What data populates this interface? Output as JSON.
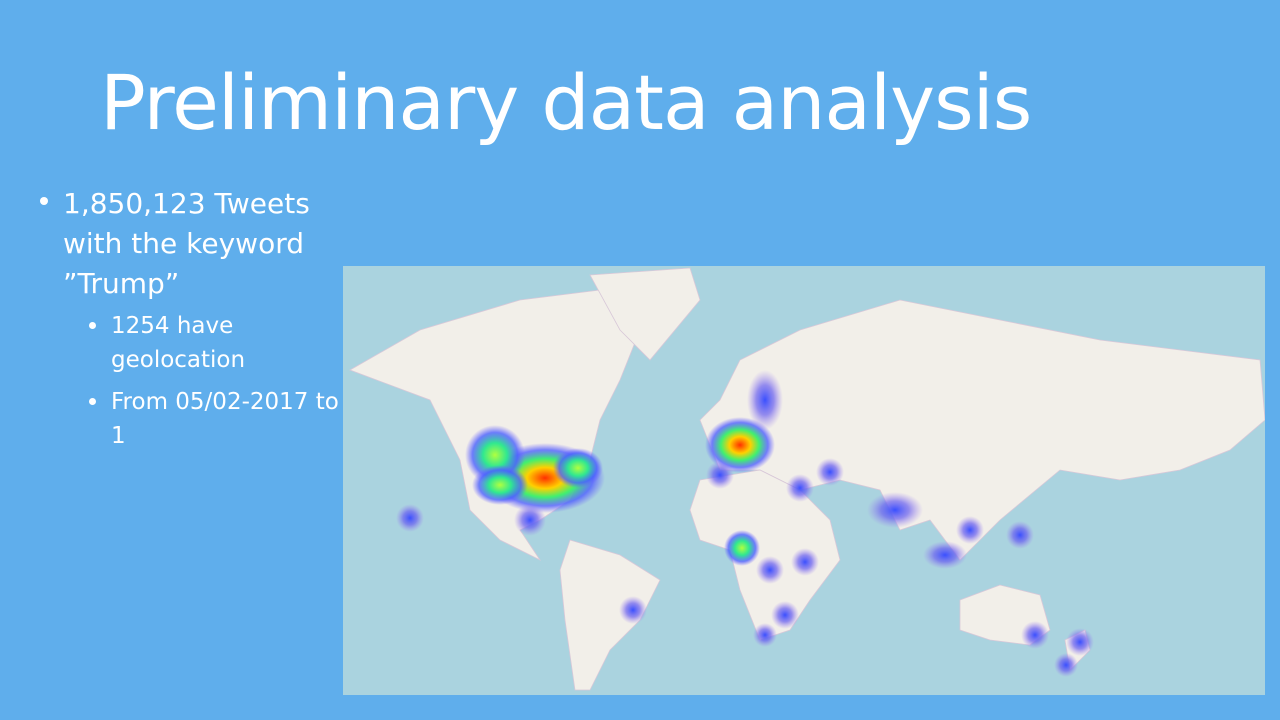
{
  "title": "Preliminary data analysis",
  "bullets": [
    {
      "text": "1,850,123 Tweets with the keyword ”Trump”",
      "children": [
        {
          "text": "1254 have geolocation"
        },
        {
          "text": "From 05/02-2017 to 1"
        }
      ]
    }
  ]
}
